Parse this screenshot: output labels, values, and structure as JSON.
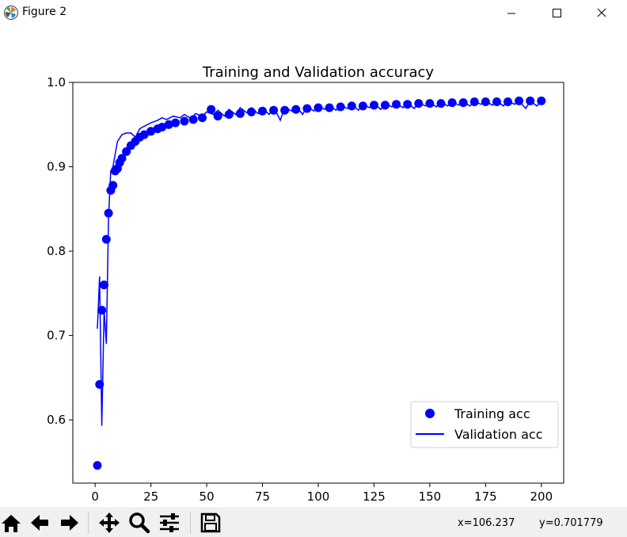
{
  "window": {
    "title": "Figure 2",
    "minimize_icon": "minimize-icon",
    "maximize_icon": "maximize-icon",
    "close_icon": "close-icon"
  },
  "toolbar": {
    "buttons": [
      "home-icon",
      "back-arrow-icon",
      "forward-arrow-icon",
      "pan-icon",
      "zoom-icon",
      "configure-subplots-icon",
      "save-icon"
    ],
    "x_readout": "x=106.237",
    "y_readout": "y=0.701779"
  },
  "chart_data": {
    "type": "line",
    "title": "Training and Validation accuracy",
    "xlabel": "",
    "ylabel": "",
    "xlim": [
      -10,
      210
    ],
    "ylim": [
      0.525,
      1.0
    ],
    "x_ticks": [
      "0",
      "25",
      "50",
      "75",
      "100",
      "125",
      "150",
      "175",
      "200"
    ],
    "x_tick_values": [
      0,
      25,
      50,
      75,
      100,
      125,
      150,
      175,
      200
    ],
    "y_ticks": [
      "0.6",
      "0.7",
      "0.8",
      "0.9",
      "1.0"
    ],
    "y_tick_values": [
      0.6,
      0.7,
      0.8,
      0.9,
      1.0
    ],
    "grid": false,
    "legend": "lower-right",
    "color": "#0000ff",
    "series": [
      {
        "name": "Training acc",
        "style": "markers",
        "points": [
          [
            1,
            0.546
          ],
          [
            2,
            0.642
          ],
          [
            3,
            0.73
          ],
          [
            4,
            0.76
          ],
          [
            5,
            0.814
          ],
          [
            6,
            0.845
          ],
          [
            7,
            0.872
          ],
          [
            8,
            0.878
          ],
          [
            9,
            0.895
          ],
          [
            10,
            0.898
          ],
          [
            11,
            0.905
          ],
          [
            12,
            0.91
          ],
          [
            14,
            0.918
          ],
          [
            16,
            0.925
          ],
          [
            18,
            0.93
          ],
          [
            20,
            0.935
          ],
          [
            22,
            0.938
          ],
          [
            25,
            0.942
          ],
          [
            28,
            0.945
          ],
          [
            30,
            0.947
          ],
          [
            33,
            0.95
          ],
          [
            36,
            0.952
          ],
          [
            40,
            0.954
          ],
          [
            44,
            0.956
          ],
          [
            48,
            0.958
          ],
          [
            52,
            0.968
          ],
          [
            55,
            0.96
          ],
          [
            60,
            0.962
          ],
          [
            65,
            0.963
          ],
          [
            70,
            0.965
          ],
          [
            75,
            0.966
          ],
          [
            80,
            0.967
          ],
          [
            85,
            0.967
          ],
          [
            90,
            0.968
          ],
          [
            95,
            0.969
          ],
          [
            100,
            0.97
          ],
          [
            105,
            0.97
          ],
          [
            110,
            0.971
          ],
          [
            115,
            0.972
          ],
          [
            120,
            0.972
          ],
          [
            125,
            0.973
          ],
          [
            130,
            0.973
          ],
          [
            135,
            0.974
          ],
          [
            140,
            0.974
          ],
          [
            145,
            0.975
          ],
          [
            150,
            0.975
          ],
          [
            155,
            0.975
          ],
          [
            160,
            0.976
          ],
          [
            165,
            0.976
          ],
          [
            170,
            0.977
          ],
          [
            175,
            0.977
          ],
          [
            180,
            0.977
          ],
          [
            185,
            0.977
          ],
          [
            190,
            0.978
          ],
          [
            195,
            0.978
          ],
          [
            200,
            0.978
          ]
        ]
      },
      {
        "name": "Validation acc",
        "style": "line",
        "points": [
          [
            1,
            0.708
          ],
          [
            2,
            0.77
          ],
          [
            3,
            0.593
          ],
          [
            4,
            0.73
          ],
          [
            5,
            0.69
          ],
          [
            6,
            0.84
          ],
          [
            7,
            0.895
          ],
          [
            8,
            0.9
          ],
          [
            9,
            0.915
          ],
          [
            10,
            0.93
          ],
          [
            12,
            0.938
          ],
          [
            14,
            0.94
          ],
          [
            16,
            0.94
          ],
          [
            18,
            0.935
          ],
          [
            20,
            0.945
          ],
          [
            22,
            0.948
          ],
          [
            25,
            0.952
          ],
          [
            28,
            0.955
          ],
          [
            30,
            0.958
          ],
          [
            32,
            0.956
          ],
          [
            35,
            0.96
          ],
          [
            38,
            0.958
          ],
          [
            40,
            0.962
          ],
          [
            43,
            0.957
          ],
          [
            45,
            0.963
          ],
          [
            48,
            0.96
          ],
          [
            50,
            0.965
          ],
          [
            53,
            0.962
          ],
          [
            55,
            0.967
          ],
          [
            58,
            0.96
          ],
          [
            60,
            0.968
          ],
          [
            63,
            0.962
          ],
          [
            65,
            0.97
          ],
          [
            68,
            0.964
          ],
          [
            70,
            0.97
          ],
          [
            73,
            0.963
          ],
          [
            75,
            0.97
          ],
          [
            78,
            0.962
          ],
          [
            80,
            0.971
          ],
          [
            83,
            0.955
          ],
          [
            85,
            0.971
          ],
          [
            88,
            0.966
          ],
          [
            90,
            0.972
          ],
          [
            93,
            0.962
          ],
          [
            95,
            0.972
          ],
          [
            98,
            0.966
          ],
          [
            100,
            0.972
          ],
          [
            103,
            0.968
          ],
          [
            105,
            0.973
          ],
          [
            108,
            0.967
          ],
          [
            110,
            0.973
          ],
          [
            113,
            0.969
          ],
          [
            115,
            0.974
          ],
          [
            118,
            0.967
          ],
          [
            120,
            0.974
          ],
          [
            123,
            0.97
          ],
          [
            125,
            0.975
          ],
          [
            128,
            0.968
          ],
          [
            130,
            0.975
          ],
          [
            133,
            0.971
          ],
          [
            135,
            0.975
          ],
          [
            138,
            0.97
          ],
          [
            140,
            0.976
          ],
          [
            143,
            0.969
          ],
          [
            145,
            0.976
          ],
          [
            148,
            0.972
          ],
          [
            150,
            0.976
          ],
          [
            153,
            0.971
          ],
          [
            155,
            0.977
          ],
          [
            158,
            0.972
          ],
          [
            160,
            0.977
          ],
          [
            163,
            0.973
          ],
          [
            165,
            0.977
          ],
          [
            168,
            0.972
          ],
          [
            170,
            0.977
          ],
          [
            173,
            0.974
          ],
          [
            175,
            0.978
          ],
          [
            178,
            0.973
          ],
          [
            180,
            0.978
          ],
          [
            183,
            0.972
          ],
          [
            185,
            0.978
          ],
          [
            188,
            0.974
          ],
          [
            190,
            0.978
          ],
          [
            193,
            0.969
          ],
          [
            195,
            0.978
          ],
          [
            198,
            0.972
          ],
          [
            200,
            0.978
          ]
        ]
      }
    ]
  }
}
